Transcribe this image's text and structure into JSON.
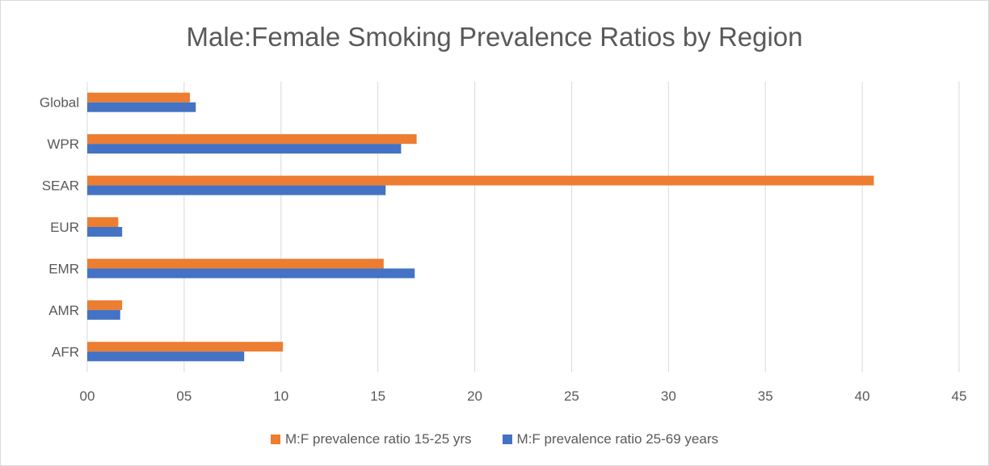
{
  "chart_data": {
    "type": "bar",
    "orientation": "horizontal",
    "title": "Male:Female Smoking Prevalence Ratios by Region",
    "categories": [
      "Global",
      "WPR",
      "SEAR",
      "EUR",
      "EMR",
      "AMR",
      "AFR"
    ],
    "series": [
      {
        "name": "M:F prevalence ratio 15-25 yrs",
        "color": "#ED7D31",
        "values": [
          5.3,
          17.0,
          40.6,
          1.6,
          15.3,
          1.8,
          10.1
        ]
      },
      {
        "name": "M:F prevalence ratio 25-69 years",
        "color": "#4472C4",
        "values": [
          5.6,
          16.2,
          15.4,
          1.8,
          16.9,
          1.7,
          8.1
        ]
      }
    ],
    "x_ticks": [
      "00",
      "05",
      "10",
      "15",
      "20",
      "25",
      "30",
      "35",
      "40",
      "45"
    ],
    "xlim": [
      0,
      45
    ],
    "xlabel": "",
    "ylabel": "",
    "grid": "vertical",
    "legend": "bottom"
  }
}
